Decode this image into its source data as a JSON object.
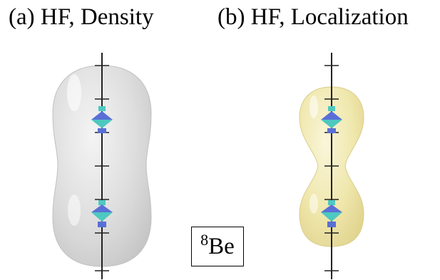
{
  "panels": [
    {
      "title": "(a) HF, Density"
    },
    {
      "title": "(b) HF, Localization"
    }
  ],
  "nucleus": {
    "mass_number": "8",
    "symbol": "Be"
  },
  "colors": {
    "density_surface": "#d9d9d9",
    "localization_surface": "#f2eab0",
    "axis": "#222222",
    "cluster_top": "#5a6fd6",
    "cluster_side": "#4ec8c0"
  }
}
